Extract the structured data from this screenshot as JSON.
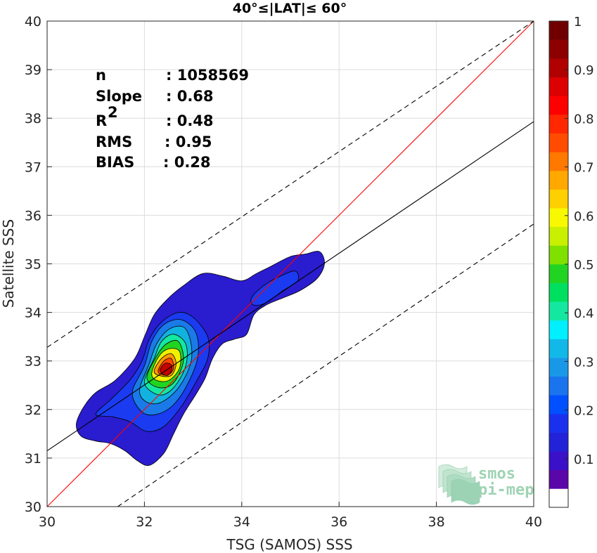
{
  "chart_data": {
    "type": "scatter",
    "title": "40°≤|LAT|≤ 60°",
    "xlabel": "TSG (SAMOS) SSS",
    "ylabel": "Satellite SSS",
    "xlim": [
      30,
      40
    ],
    "ylim": [
      30,
      40
    ],
    "xticks": [
      30,
      32,
      34,
      36,
      38,
      40
    ],
    "yticks": [
      30,
      31,
      32,
      33,
      34,
      35,
      36,
      37,
      38,
      39,
      40
    ],
    "grid": true,
    "stats": [
      {
        "label": "n",
        "value": ": 1058569"
      },
      {
        "label": "Slope",
        "value": ": 0.68"
      },
      {
        "label": "R",
        "sup": "2",
        "value": ": 0.48"
      },
      {
        "label": "RMS",
        "value": ": 0.95"
      },
      {
        "label": "BIAS",
        "value": ": 0.28"
      }
    ],
    "lines": [
      {
        "name": "identity",
        "color": "#ff0000",
        "style": "solid",
        "x": [
          30,
          40
        ],
        "y": [
          30,
          40
        ]
      },
      {
        "name": "regression",
        "color": "#000000",
        "style": "solid",
        "x": [
          30,
          40
        ],
        "y": [
          31.15,
          37.93
        ]
      },
      {
        "name": "upper-bound",
        "color": "#000000",
        "style": "dashed",
        "x": [
          30,
          40
        ],
        "y": [
          33.28,
          40.0
        ]
      },
      {
        "name": "lower-bound",
        "color": "#000000",
        "style": "dashed",
        "x": [
          31.45,
          40
        ],
        "y": [
          30.0,
          35.82
        ]
      }
    ],
    "density_contours": [
      {
        "level": 0.05,
        "color": "#2a1ccf",
        "points": [
          [
            30.6,
            31.7
          ],
          [
            30.75,
            32.05
          ],
          [
            31.0,
            32.35
          ],
          [
            31.4,
            32.6
          ],
          [
            31.8,
            33.05
          ],
          [
            32.0,
            33.5
          ],
          [
            32.2,
            33.95
          ],
          [
            32.5,
            34.3
          ],
          [
            32.8,
            34.55
          ],
          [
            33.2,
            34.8
          ],
          [
            33.6,
            34.75
          ],
          [
            34.0,
            34.65
          ],
          [
            34.3,
            34.8
          ],
          [
            34.6,
            34.95
          ],
          [
            35.0,
            35.15
          ],
          [
            35.3,
            35.2
          ],
          [
            35.6,
            35.25
          ],
          [
            35.7,
            35.0
          ],
          [
            35.55,
            34.7
          ],
          [
            35.2,
            34.45
          ],
          [
            34.85,
            34.3
          ],
          [
            34.5,
            34.15
          ],
          [
            34.25,
            33.95
          ],
          [
            34.1,
            33.55
          ],
          [
            33.85,
            33.45
          ],
          [
            33.6,
            33.35
          ],
          [
            33.4,
            33.05
          ],
          [
            33.25,
            32.65
          ],
          [
            33.05,
            32.3
          ],
          [
            32.8,
            31.9
          ],
          [
            32.6,
            31.5
          ],
          [
            32.4,
            31.1
          ],
          [
            32.1,
            30.85
          ],
          [
            31.85,
            30.95
          ],
          [
            31.6,
            31.15
          ],
          [
            31.3,
            31.3
          ],
          [
            31.0,
            31.35
          ],
          [
            30.7,
            31.45
          ]
        ]
      },
      {
        "level": 0.1,
        "color": "#1a3bf0",
        "points": [
          [
            31.0,
            31.9
          ],
          [
            31.3,
            32.2
          ],
          [
            31.7,
            32.6
          ],
          [
            31.95,
            33.0
          ],
          [
            32.1,
            33.45
          ],
          [
            32.35,
            33.8
          ],
          [
            32.7,
            34.0
          ],
          [
            33.0,
            33.9
          ],
          [
            33.3,
            33.5
          ],
          [
            33.3,
            33.05
          ],
          [
            33.05,
            32.55
          ],
          [
            32.75,
            32.05
          ],
          [
            32.4,
            31.65
          ],
          [
            32.05,
            31.55
          ],
          [
            31.7,
            31.75
          ],
          [
            31.35,
            31.85
          ]
        ]
      },
      {
        "level": 0.1,
        "color": "#1a3bf0",
        "points": [
          [
            34.2,
            34.3
          ],
          [
            34.45,
            34.55
          ],
          [
            34.8,
            34.75
          ],
          [
            35.1,
            34.85
          ],
          [
            35.15,
            34.65
          ],
          [
            34.85,
            34.45
          ],
          [
            34.5,
            34.2
          ],
          [
            34.25,
            34.15
          ]
        ]
      },
      {
        "level": 0.2,
        "color": "#1a7ae8",
        "points": [
          [
            31.75,
            32.35
          ],
          [
            32.0,
            32.9
          ],
          [
            32.15,
            33.4
          ],
          [
            32.4,
            33.75
          ],
          [
            32.75,
            33.85
          ],
          [
            33.05,
            33.6
          ],
          [
            33.1,
            33.1
          ],
          [
            32.9,
            32.55
          ],
          [
            32.6,
            32.1
          ],
          [
            32.25,
            31.9
          ],
          [
            31.95,
            31.95
          ]
        ]
      },
      {
        "level": 0.3,
        "color": "#12b2e0",
        "points": [
          [
            31.9,
            32.4
          ],
          [
            32.1,
            32.95
          ],
          [
            32.25,
            33.35
          ],
          [
            32.5,
            33.65
          ],
          [
            32.8,
            33.7
          ],
          [
            32.95,
            33.4
          ],
          [
            32.95,
            32.95
          ],
          [
            32.7,
            32.45
          ],
          [
            32.35,
            32.15
          ],
          [
            32.05,
            32.15
          ]
        ]
      },
      {
        "level": 0.4,
        "color": "#14e8a0",
        "points": [
          [
            32.0,
            32.55
          ],
          [
            32.2,
            33.05
          ],
          [
            32.35,
            33.4
          ],
          [
            32.6,
            33.55
          ],
          [
            32.85,
            33.35
          ],
          [
            32.85,
            32.9
          ],
          [
            32.6,
            32.45
          ],
          [
            32.3,
            32.3
          ]
        ]
      },
      {
        "level": 0.5,
        "color": "#22d422",
        "points": [
          [
            32.05,
            32.65
          ],
          [
            32.25,
            33.1
          ],
          [
            32.45,
            33.35
          ],
          [
            32.7,
            33.4
          ],
          [
            32.8,
            33.0
          ],
          [
            32.6,
            32.55
          ],
          [
            32.3,
            32.45
          ]
        ]
      },
      {
        "level": 0.6,
        "color": "#f0f000",
        "points": [
          [
            32.15,
            32.75
          ],
          [
            32.3,
            33.1
          ],
          [
            32.5,
            33.25
          ],
          [
            32.72,
            33.2
          ],
          [
            32.72,
            32.85
          ],
          [
            32.5,
            32.6
          ],
          [
            32.25,
            32.6
          ]
        ]
      },
      {
        "level": 0.7,
        "color": "#ff9a00",
        "points": [
          [
            32.2,
            32.8
          ],
          [
            32.35,
            33.05
          ],
          [
            32.55,
            33.15
          ],
          [
            32.65,
            32.95
          ],
          [
            32.55,
            32.7
          ],
          [
            32.3,
            32.7
          ]
        ]
      },
      {
        "level": 0.8,
        "color": "#ff4400",
        "points": [
          [
            32.28,
            32.8
          ],
          [
            32.4,
            33.0
          ],
          [
            32.55,
            33.05
          ],
          [
            32.6,
            32.85
          ],
          [
            32.5,
            32.72
          ],
          [
            32.35,
            32.72
          ]
        ]
      },
      {
        "level": 0.9,
        "color": "#c40000",
        "points": [
          [
            32.32,
            32.8
          ],
          [
            32.42,
            32.95
          ],
          [
            32.55,
            32.92
          ],
          [
            32.55,
            32.78
          ],
          [
            32.45,
            32.7
          ]
        ]
      }
    ],
    "colorbar": {
      "ticks": [
        "0.1",
        "0.2",
        "0.3",
        "0.4",
        "0.5",
        "0.6",
        "0.7",
        "0.8",
        "0.9",
        "1"
      ],
      "tick_values": [
        0.1,
        0.2,
        0.3,
        0.4,
        0.5,
        0.6,
        0.7,
        0.8,
        0.9,
        1.0
      ],
      "colors": [
        "#ffffff",
        "#5a06a8",
        "#3a10c8",
        "#2222d8",
        "#1a30ee",
        "#0050ff",
        "#1a74ee",
        "#1a98e8",
        "#12b8e8",
        "#00f0ff",
        "#14e8a0",
        "#00e060",
        "#22d422",
        "#80e000",
        "#c8f000",
        "#f8f800",
        "#ffd000",
        "#ffa800",
        "#ff7800",
        "#ff4c00",
        "#ff2800",
        "#ff0000",
        "#dd0000",
        "#b00000",
        "#8c0000",
        "#700000"
      ]
    },
    "logo": {
      "line1": "smos",
      "line2": "pi-mep"
    }
  }
}
